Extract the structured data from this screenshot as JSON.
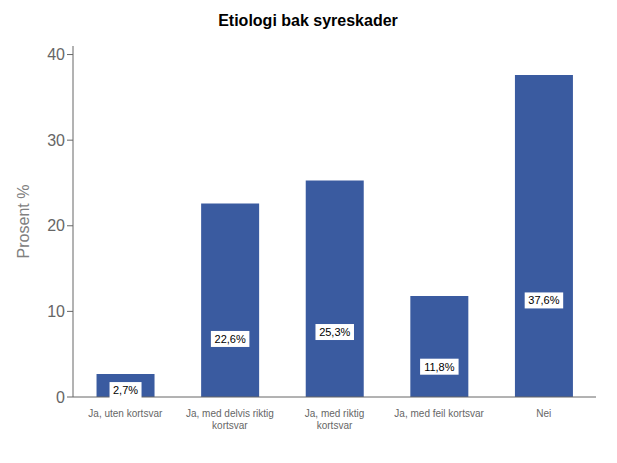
{
  "chart_data": {
    "type": "bar",
    "title": "Etiologi bak syreskader",
    "categories": [
      "Ja, uten kortsvar",
      "Ja, med delvis riktig\nkortsvar",
      "Ja, med riktig\nkortsvar",
      "Ja, med feil kortsvar",
      "Nei"
    ],
    "values": [
      2.7,
      22.6,
      25.3,
      11.8,
      37.6
    ],
    "value_labels": [
      "2,7%",
      "22,6%",
      "25,3%",
      "11,8%",
      "37,6%"
    ],
    "data_labels": true,
    "color": "#3A5BA0",
    "ylabel": "Prosent %",
    "ylim": [
      0,
      41
    ],
    "yticks": [
      0,
      10,
      20,
      30,
      40
    ],
    "grid": false
  }
}
